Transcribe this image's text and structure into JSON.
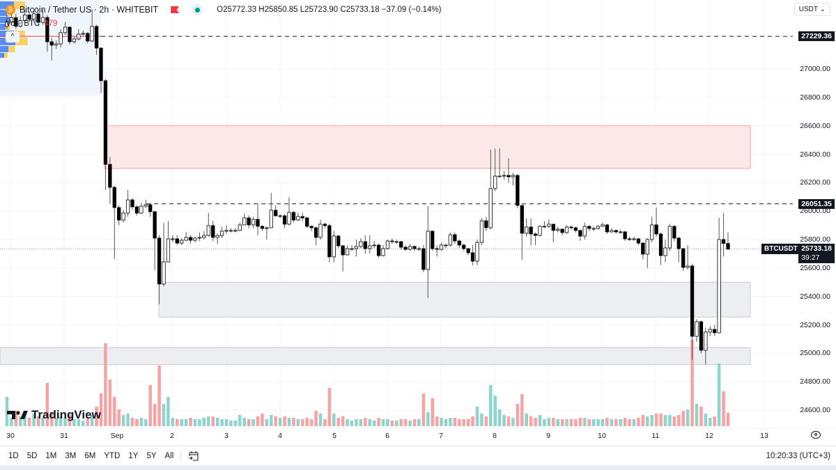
{
  "header": {
    "symbol": "Bitcoin / Tether US · 2h · WHITEBIT",
    "open": "O25772.33",
    "high": "H25850.85",
    "low": "L25723.90",
    "close": "C25733.18",
    "change": "−37.09 (−0.14%)",
    "volume_label": "Vol · BTC",
    "volume_value": "479",
    "coin_icon": "bitcoin-icon",
    "flag_icon": "flag-icon",
    "status_icon": "market-open-dot-icon"
  },
  "currency": "USDT",
  "price_axis": {
    "ticks": [
      "27000.00",
      "26800.00",
      "26600.00",
      "26400.00",
      "26200.00",
      "26000.00",
      "25800.00",
      "25600.00",
      "25400.00",
      "25200.00",
      "25000.00",
      "24800.00",
      "24600.00"
    ],
    "level_tags": [
      "27229.36",
      "26051.35"
    ],
    "current_symbol": "BTCUSDT",
    "current_price": "25733.18",
    "countdown": "39:27"
  },
  "time_axis": {
    "ticks": [
      "30",
      "31",
      "Sep",
      "2",
      "3",
      "4",
      "5",
      "6",
      "7",
      "8",
      "9",
      "10",
      "11",
      "12",
      "13"
    ]
  },
  "toolbar": {
    "ranges": [
      "1D",
      "5D",
      "1M",
      "3M",
      "6M",
      "YTD",
      "1Y",
      "5Y",
      "All"
    ],
    "goto_icon": "calendar-goto-icon",
    "clock": "10:20:33 (UTC+3)",
    "settings_icon": "eye-icon"
  },
  "logo": "TradingView",
  "colors": {
    "up_body": "#ffffff",
    "down_body": "#000000",
    "wick": "#555555",
    "vol_up": "#8fd3cc",
    "vol_down": "#f5a3a3",
    "resistance_zone": "#fde8e8",
    "support_zone": "#eceef2"
  },
  "chart_data": {
    "type": "candlestick",
    "interval": "2h",
    "ylim": [
      24520,
      27420
    ],
    "grid": true,
    "first_open": 27300,
    "candle_fields": [
      "close",
      "high",
      "low",
      "volume"
    ],
    "candles": [
      [
        27330,
        27380,
        27280,
        1050
      ],
      [
        27360,
        27400,
        27310,
        300
      ],
      [
        27300,
        27390,
        27280,
        550
      ],
      [
        27340,
        27370,
        27290,
        350
      ],
      [
        27380,
        27420,
        27320,
        400
      ],
      [
        27350,
        27400,
        27330,
        300
      ],
      [
        27387,
        27420,
        27330,
        450
      ],
      [
        27328,
        27400,
        27300,
        350
      ],
      [
        27362,
        27420,
        27310,
        300
      ],
      [
        27191,
        27380,
        27120,
        1550
      ],
      [
        27167,
        27220,
        27060,
        500
      ],
      [
        27176,
        27200,
        27140,
        300
      ],
      [
        27255,
        27280,
        27150,
        350
      ],
      [
        27294,
        27330,
        27240,
        300
      ],
      [
        27191,
        27300,
        27170,
        400
      ],
      [
        27211,
        27230,
        27180,
        250
      ],
      [
        27245,
        27280,
        27200,
        250
      ],
      [
        27250,
        27270,
        27230,
        200
      ],
      [
        27196,
        27260,
        27180,
        300
      ],
      [
        27299,
        27420,
        27190,
        400
      ],
      [
        27147,
        27310,
        27100,
        700
      ],
      [
        26917,
        27150,
        26830,
        1175
      ],
      [
        26329,
        26930,
        26148,
        2980
      ],
      [
        26167,
        26380,
        26050,
        1675
      ],
      [
        26025,
        26180,
        25663,
        1050
      ],
      [
        25937,
        26040,
        25900,
        600
      ],
      [
        25986,
        26010,
        25920,
        400
      ],
      [
        26079,
        26148,
        25960,
        450
      ],
      [
        26030,
        26090,
        26010,
        300
      ],
      [
        25986,
        26040,
        25970,
        250
      ],
      [
        26035,
        26060,
        25980,
        300
      ],
      [
        26045,
        26080,
        26020,
        250
      ],
      [
        25996,
        26060,
        25960,
        1475
      ],
      [
        25810,
        26000,
        25585,
        800
      ],
      [
        25487,
        25830,
        25345,
        2180
      ],
      [
        25643,
        25917,
        25470,
        800
      ],
      [
        25805,
        25930,
        25640,
        1050
      ],
      [
        25805,
        25830,
        25780,
        300
      ],
      [
        25775,
        25830,
        25760,
        250
      ],
      [
        25795,
        25810,
        25760,
        250
      ],
      [
        25815,
        25850,
        25790,
        250
      ],
      [
        25795,
        25830,
        25770,
        300
      ],
      [
        25810,
        25820,
        25780,
        250
      ],
      [
        25815,
        25850,
        25790,
        250
      ],
      [
        25829,
        25860,
        25800,
        300
      ],
      [
        25898,
        25986,
        25820,
        350
      ],
      [
        25815,
        25930,
        25790,
        350
      ],
      [
        25829,
        25840,
        25770,
        300
      ],
      [
        25859,
        25890,
        25810,
        250
      ],
      [
        25864,
        25900,
        25840,
        250
      ],
      [
        25864,
        25880,
        25850,
        200
      ],
      [
        25864,
        25880,
        25850,
        200
      ],
      [
        25903,
        25920,
        25860,
        400
      ],
      [
        25952,
        25980,
        25900,
        300
      ],
      [
        25903,
        25970,
        25880,
        250
      ],
      [
        25942,
        25960,
        25880,
        250
      ],
      [
        25893,
        26050,
        25830,
        350
      ],
      [
        25878,
        25900,
        25860,
        450
      ],
      [
        25883,
        25890,
        25800,
        250
      ],
      [
        26006,
        26128,
        25880,
        400
      ],
      [
        25967,
        26040,
        25960,
        350
      ],
      [
        25967,
        25980,
        25950,
        300
      ],
      [
        25908,
        25980,
        25880,
        350
      ],
      [
        25991,
        26099,
        25900,
        300
      ],
      [
        25937,
        26000,
        25920,
        300
      ],
      [
        25962,
        25990,
        25930,
        250
      ],
      [
        25952,
        25990,
        25930,
        250
      ],
      [
        25893,
        25960,
        25880,
        300
      ],
      [
        25883,
        25900,
        25860,
        250
      ],
      [
        25815,
        25890,
        25760,
        550
      ],
      [
        25908,
        25940,
        25800,
        450
      ],
      [
        25898,
        25920,
        25880,
        250
      ],
      [
        25678,
        25910,
        25638,
        1375
      ],
      [
        25825,
        25860,
        25640,
        450
      ],
      [
        25756,
        25830,
        25740,
        300
      ],
      [
        25692,
        25760,
        25575,
        350
      ],
      [
        25736,
        25760,
        25690,
        250
      ],
      [
        25736,
        25760,
        25720,
        200
      ],
      [
        25751,
        25800,
        25680,
        250
      ],
      [
        25785,
        25810,
        25740,
        250
      ],
      [
        25736,
        25830,
        25700,
        300
      ],
      [
        25756,
        25830,
        25700,
        250
      ],
      [
        25761,
        25790,
        25740,
        200
      ],
      [
        25687,
        25770,
        25670,
        300
      ],
      [
        25736,
        25760,
        25680,
        250
      ],
      [
        25790,
        25800,
        25730,
        250
      ],
      [
        25785,
        25810,
        25770,
        200
      ],
      [
        25785,
        25800,
        25770,
        200
      ],
      [
        25746,
        25790,
        25730,
        250
      ],
      [
        25731,
        25760,
        25720,
        250
      ],
      [
        25751,
        25770,
        25720,
        200
      ],
      [
        25736,
        25760,
        25720,
        250
      ],
      [
        25736,
        25750,
        25720,
        250
      ],
      [
        25589,
        25760,
        25570,
        1175
      ],
      [
        25859,
        26035,
        25389,
        500
      ],
      [
        25736,
        25860,
        25720,
        1000
      ],
      [
        25731,
        25760,
        25680,
        350
      ],
      [
        25761,
        25780,
        25720,
        300
      ],
      [
        25761,
        25770,
        25740,
        250
      ],
      [
        25834,
        25850,
        25750,
        300
      ],
      [
        25790,
        25850,
        25770,
        300
      ],
      [
        25761,
        25800,
        25740,
        250
      ],
      [
        25736,
        25770,
        25720,
        250
      ],
      [
        25707,
        25740,
        25690,
        250
      ],
      [
        25648,
        25760,
        25620,
        350
      ],
      [
        25780,
        25800,
        25620,
        700
      ],
      [
        25932,
        25950,
        25760,
        450
      ],
      [
        25883,
        25960,
        25860,
        350
      ],
      [
        26158,
        26432,
        25870,
        1475
      ],
      [
        26246,
        26440,
        26140,
        1100
      ],
      [
        26246,
        26442,
        26240,
        600
      ],
      [
        26251,
        26280,
        26220,
        400
      ],
      [
        26241,
        26370,
        26200,
        350
      ],
      [
        26251,
        26270,
        26180,
        300
      ],
      [
        26040,
        26260,
        26020,
        800
      ],
      [
        25844,
        26040,
        25658,
        1150
      ],
      [
        25888,
        25950,
        25820,
        450
      ],
      [
        25839,
        25950,
        25760,
        350
      ],
      [
        25829,
        25850,
        25760,
        300
      ],
      [
        25893,
        25900,
        25820,
        400
      ],
      [
        25893,
        25930,
        25880,
        250
      ],
      [
        25908,
        25940,
        25880,
        300
      ],
      [
        25864,
        25910,
        25780,
        300
      ],
      [
        25873,
        25890,
        25850,
        250
      ],
      [
        25849,
        25880,
        25830,
        250
      ],
      [
        25888,
        25900,
        25840,
        250
      ],
      [
        25883,
        25900,
        25870,
        250
      ],
      [
        25864,
        25890,
        25850,
        250
      ],
      [
        25824,
        25870,
        25790,
        300
      ],
      [
        25893,
        25920,
        25800,
        300
      ],
      [
        25878,
        25900,
        25860,
        250
      ],
      [
        25878,
        25890,
        25860,
        250
      ],
      [
        25893,
        25900,
        25870,
        250
      ],
      [
        25903,
        25920,
        25890,
        250
      ],
      [
        25854,
        25910,
        25840,
        300
      ],
      [
        25864,
        25880,
        25850,
        250
      ],
      [
        25854,
        25870,
        25840,
        250
      ],
      [
        25854,
        25870,
        25840,
        250
      ],
      [
        25805,
        25860,
        25790,
        300
      ],
      [
        25800,
        25820,
        25790,
        250
      ],
      [
        25805,
        25820,
        25790,
        250
      ],
      [
        25775,
        25810,
        25760,
        300
      ],
      [
        25697,
        25780,
        25660,
        400
      ],
      [
        25800,
        25810,
        25600,
        350
      ],
      [
        25903,
        25960,
        25780,
        400
      ],
      [
        25839,
        26025,
        25820,
        450
      ],
      [
        25687,
        25850,
        25620,
        450
      ],
      [
        25741,
        25800,
        25640,
        400
      ],
      [
        25893,
        25910,
        25720,
        400
      ],
      [
        25810,
        25900,
        25790,
        350
      ],
      [
        25736,
        25820,
        25640,
        400
      ],
      [
        25604,
        25740,
        25580,
        550
      ],
      [
        25614,
        25760,
        25590,
        600
      ],
      [
        25119,
        25630,
        24953,
        3100
      ],
      [
        25222,
        25240,
        25080,
        800
      ],
      [
        25021,
        25230,
        25000,
        700
      ],
      [
        25149,
        25180,
        24923,
        450
      ],
      [
        25168,
        25190,
        25120,
        300
      ],
      [
        25144,
        25200,
        25120,
        350
      ],
      [
        25800,
        25952,
        25140,
        2250
      ],
      [
        25772.33,
        25986,
        25680,
        1250
      ],
      [
        25733.18,
        25850.85,
        25723.9,
        479
      ]
    ],
    "horizontal_levels": [
      {
        "price": 27229.36,
        "style": "dashed"
      },
      {
        "price": 26051.35,
        "style": "dashed"
      },
      {
        "price": 25733.18,
        "style": "dotted-current"
      }
    ],
    "zones": [
      {
        "kind": "resistance",
        "from": 26300,
        "to": 26600,
        "start_date": "Sep 1"
      },
      {
        "kind": "support",
        "from": 25255,
        "to": 25500,
        "start_date": "Sep 1"
      },
      {
        "kind": "support",
        "from": 24920,
        "to": 25040,
        "start_date": "Aug 30"
      }
    ]
  }
}
